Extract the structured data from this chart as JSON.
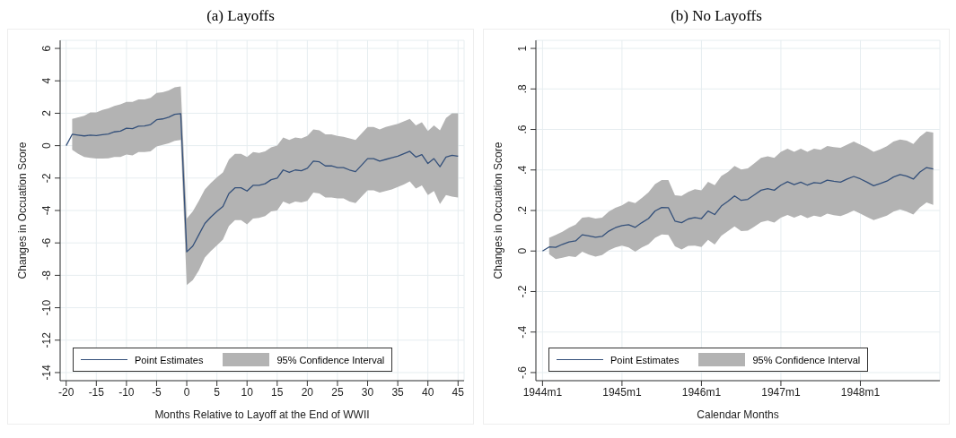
{
  "chart_data": [
    {
      "type": "line",
      "title": "(a) Layoffs",
      "xlabel": "Months Relative to Layoff at the End of WWII",
      "ylabel": "Changes in Occuation Score",
      "x": [
        -20,
        -19,
        -18,
        -17,
        -16,
        -15,
        -14,
        -13,
        -12,
        -11,
        -10,
        -9,
        -8,
        -7,
        -6,
        -5,
        -4,
        -3,
        -2,
        -1,
        0,
        1,
        2,
        3,
        4,
        5,
        6,
        7,
        8,
        9,
        10,
        11,
        12,
        13,
        14,
        15,
        16,
        17,
        18,
        19,
        20,
        21,
        22,
        23,
        24,
        25,
        26,
        27,
        28,
        29,
        30,
        31,
        32,
        33,
        34,
        35,
        36,
        37,
        38,
        39,
        40,
        41,
        42,
        43,
        44,
        45
      ],
      "series": [
        {
          "name": "Point Estimates",
          "type": "line",
          "color": "#34507a",
          "values": [
            0,
            0.7,
            0.65,
            0.6,
            0.65,
            0.62,
            0.68,
            0.72,
            0.85,
            0.9,
            1.08,
            1.05,
            1.2,
            1.22,
            1.3,
            1.6,
            1.65,
            1.75,
            1.93,
            1.97,
            -6.55,
            -6.2,
            -5.5,
            -4.8,
            -4.4,
            -4.05,
            -3.75,
            -2.95,
            -2.6,
            -2.6,
            -2.8,
            -2.45,
            -2.45,
            -2.35,
            -2.1,
            -2.0,
            -1.5,
            -1.65,
            -1.5,
            -1.55,
            -1.4,
            -0.95,
            -1.0,
            -1.25,
            -1.25,
            -1.35,
            -1.35,
            -1.5,
            -1.6,
            -1.2,
            -0.8,
            -0.8,
            -0.95,
            -0.85,
            -0.75,
            -0.65,
            -0.5,
            -0.35,
            -0.7,
            -0.55,
            -1.1,
            -0.8,
            -1.3,
            -0.7,
            -0.6,
            -0.65
          ],
          "upper": [
            null,
            1.65,
            1.75,
            1.85,
            2.05,
            2.05,
            2.2,
            2.3,
            2.45,
            2.55,
            2.7,
            2.7,
            2.85,
            2.85,
            2.95,
            3.25,
            3.3,
            3.4,
            3.6,
            3.65,
            -4.5,
            -4.05,
            -3.4,
            -2.7,
            -2.3,
            -1.95,
            -1.65,
            -0.85,
            -0.5,
            -0.5,
            -0.7,
            -0.4,
            -0.45,
            -0.35,
            -0.1,
            0.0,
            0.5,
            0.35,
            0.5,
            0.45,
            0.6,
            1.0,
            0.95,
            0.7,
            0.7,
            0.6,
            0.55,
            0.45,
            0.35,
            0.75,
            1.15,
            1.15,
            1.0,
            1.15,
            1.25,
            1.35,
            1.5,
            1.65,
            1.25,
            1.45,
            0.9,
            1.25,
            0.95,
            1.7,
            2.0,
            2.0
          ],
          "lower": [
            null,
            -0.25,
            -0.5,
            -0.7,
            -0.75,
            -0.8,
            -0.8,
            -0.78,
            -0.7,
            -0.7,
            -0.55,
            -0.6,
            -0.4,
            -0.4,
            -0.35,
            -0.05,
            0.05,
            0.15,
            0.3,
            0.35,
            -8.6,
            -8.3,
            -7.7,
            -6.9,
            -6.5,
            -6.15,
            -5.8,
            -4.95,
            -4.6,
            -4.6,
            -4.85,
            -4.5,
            -4.45,
            -4.35,
            -4.05,
            -4.0,
            -3.45,
            -3.6,
            -3.45,
            -3.5,
            -3.4,
            -2.9,
            -2.95,
            -3.2,
            -3.2,
            -3.25,
            -3.25,
            -3.45,
            -3.55,
            -3.15,
            -2.75,
            -2.75,
            -2.9,
            -2.8,
            -2.7,
            -2.55,
            -2.4,
            -2.2,
            -2.65,
            -2.45,
            -3.05,
            -2.8,
            -3.6,
            -3.05,
            -3.15,
            -3.2
          ]
        },
        {
          "name": "95% Confidence Interval",
          "type": "area",
          "color": "#b3b3b3",
          "values": [
            null,
            null,
            null,
            null,
            null,
            null,
            null,
            null,
            null,
            null,
            null,
            null,
            null,
            null,
            null,
            null,
            null,
            null,
            null,
            null,
            null,
            null,
            null,
            null,
            null,
            null,
            null,
            null,
            null,
            null,
            null,
            null,
            null,
            null,
            null,
            null,
            null,
            null,
            null,
            null,
            null,
            null,
            null,
            null,
            null,
            null,
            null,
            null,
            null,
            null,
            null,
            null,
            null,
            null,
            null,
            null,
            null,
            null,
            null,
            null,
            null,
            null,
            null,
            null,
            null,
            null
          ]
        }
      ],
      "xlim": [
        -21,
        46
      ],
      "xticks": [
        -20,
        -15,
        -10,
        -5,
        0,
        5,
        10,
        15,
        20,
        25,
        30,
        35,
        40,
        45
      ],
      "ylim": [
        -14.5,
        6.5
      ],
      "yticks": [
        -14,
        -12,
        -10,
        -8,
        -6,
        -4,
        -2,
        0,
        2,
        4,
        6
      ],
      "grid": true,
      "legend": "bottom left",
      "line_style": "solid",
      "marker": "none"
    },
    {
      "type": "line",
      "title": "(b) No Layoffs",
      "xlabel": "Calendar Months",
      "ylabel": "Changes in Occuation Score",
      "x": [
        "1944-01",
        "1944-02",
        "1944-03",
        "1944-04",
        "1944-05",
        "1944-06",
        "1944-07",
        "1944-08",
        "1944-09",
        "1944-10",
        "1944-11",
        "1944-12",
        "1945-01",
        "1945-02",
        "1945-03",
        "1945-04",
        "1945-05",
        "1945-06",
        "1945-07",
        "1945-08",
        "1945-09",
        "1945-10",
        "1945-11",
        "1945-12",
        "1946-01",
        "1946-02",
        "1946-03",
        "1946-04",
        "1946-05",
        "1946-06",
        "1946-07",
        "1946-08",
        "1946-09",
        "1946-10",
        "1946-11",
        "1946-12",
        "1947-01",
        "1947-02",
        "1947-03",
        "1947-04",
        "1947-05",
        "1947-06",
        "1947-07",
        "1947-08",
        "1947-09",
        "1947-10",
        "1947-11",
        "1947-12",
        "1948-01",
        "1948-02",
        "1948-03",
        "1948-04",
        "1948-05",
        "1948-06",
        "1948-07",
        "1948-08",
        "1948-09",
        "1948-10",
        "1948-11",
        "1948-12"
      ],
      "series": [
        {
          "name": "Point Estimates",
          "type": "line",
          "color": "#34507a",
          "values": [
            0,
            0.02,
            0.018,
            0.033,
            0.045,
            0.05,
            0.08,
            0.075,
            0.068,
            0.072,
            0.098,
            0.115,
            0.125,
            0.13,
            0.117,
            0.14,
            0.16,
            0.198,
            0.215,
            0.214,
            0.148,
            0.14,
            0.158,
            0.165,
            0.16,
            0.197,
            0.18,
            0.222,
            0.245,
            0.272,
            0.25,
            0.255,
            0.277,
            0.3,
            0.308,
            0.3,
            0.325,
            0.342,
            0.328,
            0.34,
            0.325,
            0.338,
            0.334,
            0.35,
            0.344,
            0.34,
            0.355,
            0.368,
            0.356,
            0.34,
            0.322,
            0.333,
            0.345,
            0.365,
            0.377,
            0.37,
            0.355,
            0.39,
            0.412,
            0.405
          ],
          "upper": [
            null,
            0.065,
            0.08,
            0.095,
            0.115,
            0.13,
            0.165,
            0.168,
            0.16,
            0.165,
            0.195,
            0.213,
            0.225,
            0.245,
            0.237,
            0.262,
            0.29,
            0.33,
            0.35,
            0.35,
            0.275,
            0.272,
            0.292,
            0.305,
            0.3,
            0.342,
            0.325,
            0.37,
            0.39,
            0.42,
            0.402,
            0.408,
            0.433,
            0.46,
            0.468,
            0.46,
            0.49,
            0.505,
            0.49,
            0.505,
            0.49,
            0.505,
            0.5,
            0.518,
            0.513,
            0.51,
            0.525,
            0.54,
            0.525,
            0.51,
            0.49,
            0.502,
            0.517,
            0.54,
            0.55,
            0.545,
            0.528,
            0.565,
            0.59,
            0.585
          ],
          "lower": [
            null,
            -0.015,
            -0.04,
            -0.033,
            -0.025,
            -0.03,
            -0.003,
            -0.018,
            -0.028,
            -0.02,
            0.003,
            0.018,
            0.027,
            0.018,
            -0.003,
            0.018,
            0.033,
            0.065,
            0.082,
            0.08,
            0.023,
            0.008,
            0.025,
            0.027,
            0.02,
            0.055,
            0.032,
            0.075,
            0.098,
            0.122,
            0.098,
            0.1,
            0.12,
            0.142,
            0.15,
            0.14,
            0.165,
            0.178,
            0.165,
            0.178,
            0.162,
            0.175,
            0.168,
            0.185,
            0.177,
            0.172,
            0.185,
            0.2,
            0.185,
            0.168,
            0.152,
            0.163,
            0.175,
            0.195,
            0.205,
            0.195,
            0.18,
            0.215,
            0.24,
            0.228
          ]
        },
        {
          "name": "95% Confidence Interval",
          "type": "area",
          "color": "#b3b3b3",
          "values": [
            null,
            null,
            null,
            null,
            null,
            null,
            null,
            null,
            null,
            null,
            null,
            null,
            null,
            null,
            null,
            null,
            null,
            null,
            null,
            null,
            null,
            null,
            null,
            null,
            null,
            null,
            null,
            null,
            null,
            null,
            null,
            null,
            null,
            null,
            null,
            null,
            null,
            null,
            null,
            null,
            null,
            null,
            null,
            null,
            null,
            null,
            null,
            null,
            null,
            null,
            null,
            null,
            null,
            null,
            null,
            null,
            null,
            null,
            null,
            null
          ]
        }
      ],
      "xlim": [
        "1943-12",
        "1949-01"
      ],
      "xticks": [
        {
          "value": "1944-01",
          "label": "1944m1"
        },
        {
          "value": "1945-01",
          "label": "1945m1"
        },
        {
          "value": "1946-01",
          "label": "1946m1"
        },
        {
          "value": "1947-01",
          "label": "1947m1"
        },
        {
          "value": "1948-01",
          "label": "1948m1"
        }
      ],
      "ylim": [
        -0.64,
        1.04
      ],
      "yticks": [
        {
          "value": -0.6,
          "label": "-.6"
        },
        {
          "value": -0.4,
          "label": "-.4"
        },
        {
          "value": -0.2,
          "label": "-.2"
        },
        0,
        {
          "value": 0.2,
          "label": ".2"
        },
        {
          "value": 0.4,
          "label": ".4"
        },
        {
          "value": 0.6,
          "label": ".6"
        },
        {
          "value": 0.8,
          "label": ".8"
        },
        1
      ],
      "grid": true,
      "legend": "bottom left",
      "line_style": "solid",
      "marker": "none"
    }
  ]
}
